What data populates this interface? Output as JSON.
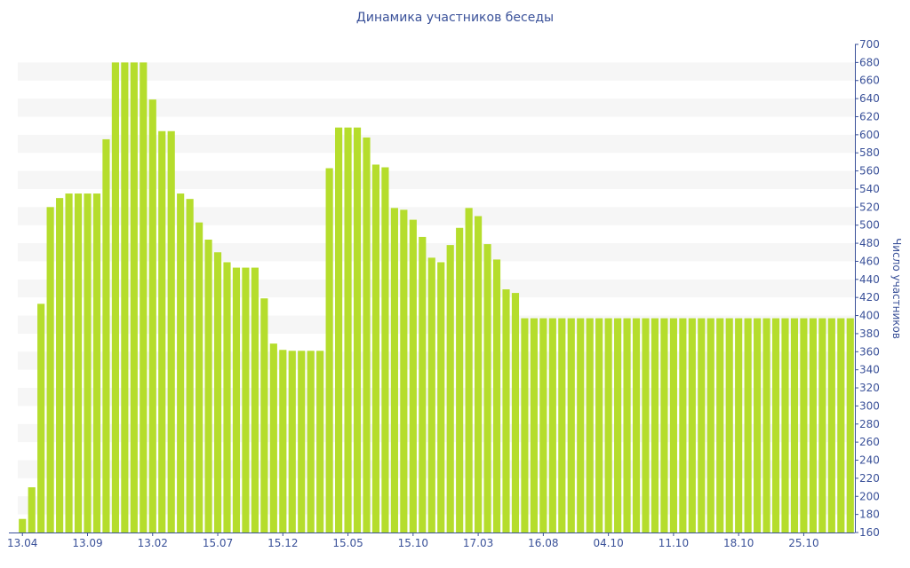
{
  "chart_data": {
    "type": "bar",
    "title": "Динамика участников беседы",
    "xlabel": "",
    "ylabel": "Число участников",
    "ylim": [
      160,
      700
    ],
    "ytick_step": 20,
    "bar_color": "#b5dd2c",
    "band_color": "#f6f6f6",
    "text_color": "#3a5199",
    "grid": "horizontal bands",
    "x_tick_labels": [
      {
        "index": 0,
        "label": "13.04"
      },
      {
        "index": 7,
        "label": "13.09"
      },
      {
        "index": 14,
        "label": "13.02"
      },
      {
        "index": 21,
        "label": "15.07"
      },
      {
        "index": 28,
        "label": "15.12"
      },
      {
        "index": 35,
        "label": "15.05"
      },
      {
        "index": 42,
        "label": "15.10"
      },
      {
        "index": 49,
        "label": "17.03"
      },
      {
        "index": 56,
        "label": "16.08"
      },
      {
        "index": 63,
        "label": "04.10"
      },
      {
        "index": 70,
        "label": "11.10"
      },
      {
        "index": 77,
        "label": "18.10"
      },
      {
        "index": 84,
        "label": "25.10"
      }
    ],
    "values": [
      175,
      210,
      413,
      520,
      530,
      535,
      535,
      535,
      535,
      595,
      680,
      680,
      680,
      680,
      639,
      604,
      604,
      535,
      529,
      503,
      484,
      470,
      459,
      453,
      453,
      453,
      419,
      369,
      362,
      361,
      361,
      361,
      361,
      563,
      608,
      608,
      608,
      597,
      567,
      564,
      519,
      517,
      506,
      487,
      464,
      459,
      478,
      497,
      519,
      510,
      479,
      462,
      429,
      425,
      397,
      397,
      397,
      397,
      397,
      397,
      397,
      397,
      397,
      397,
      397,
      397,
      397,
      397,
      397,
      397,
      397,
      397,
      397,
      397,
      397,
      397,
      397,
      397,
      397,
      397,
      397,
      397,
      397,
      397,
      397,
      397,
      397,
      397,
      397,
      397
    ]
  }
}
